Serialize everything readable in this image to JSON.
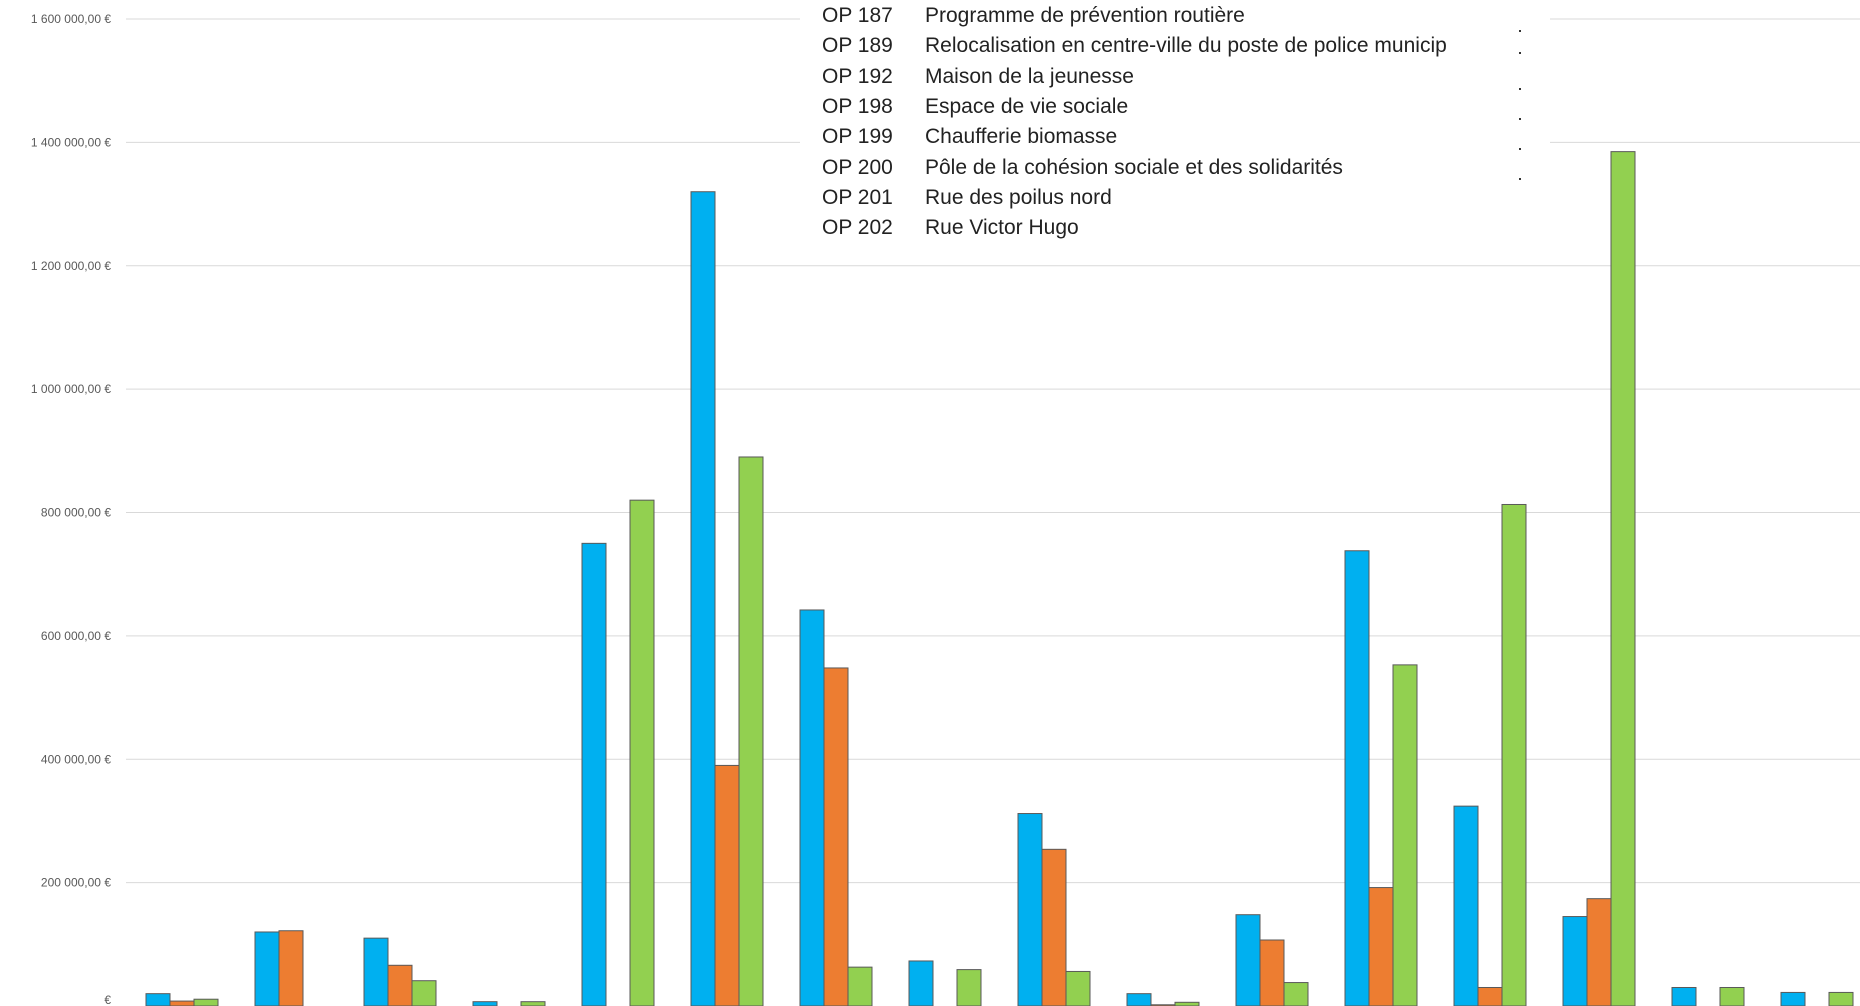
{
  "chart_data": {
    "type": "bar",
    "y_tick_labels": [
      "€",
      "200 000,00 €",
      "400 000,00 €",
      "600 000,00 €",
      "800 000,00 €",
      "1 000 000,00 €",
      "1 200 000,00 €",
      "1 400 000,00 €",
      "1 600 000,00 €"
    ],
    "ylim": [
      0,
      1600000
    ],
    "grid": true,
    "colors": [
      "#00b0f0",
      "#ed7d31",
      "#92d050"
    ],
    "series": [
      {
        "values": [
          20000,
          120000,
          110000,
          7000,
          750000,
          1320000,
          642000,
          73000,
          312000,
          20000,
          148000,
          738000,
          324000,
          145000,
          30000,
          22000
        ]
      },
      {
        "values": [
          8000,
          122000,
          66000,
          0,
          0,
          390000,
          548000,
          0,
          254000,
          2000,
          107000,
          192000,
          30000,
          174000,
          0,
          0
        ]
      },
      {
        "values": [
          11000,
          0,
          41000,
          7000,
          820000,
          890000,
          63000,
          59000,
          56000,
          6000,
          38000,
          553000,
          813000,
          1385000,
          30000,
          22000
        ]
      }
    ],
    "legend_items": [
      {
        "code": "OP 187",
        "name": "Programme de prévention routière"
      },
      {
        "code": "OP 189",
        "name": "Relocalisation en centre-ville du poste de police municip"
      },
      {
        "code": "OP 192",
        "name": "Maison de la jeunesse"
      },
      {
        "code": "OP 198",
        "name": "Espace de vie sociale"
      },
      {
        "code": "OP 199",
        "name": "Chaufferie biomasse"
      },
      {
        "code": "OP 200",
        "name": "Pôle de la cohésion sociale et des solidarités"
      },
      {
        "code": "OP 201",
        "name": "Rue des poilus nord"
      },
      {
        "code": "OP 202",
        "name": "Rue Victor Hugo"
      }
    ]
  }
}
